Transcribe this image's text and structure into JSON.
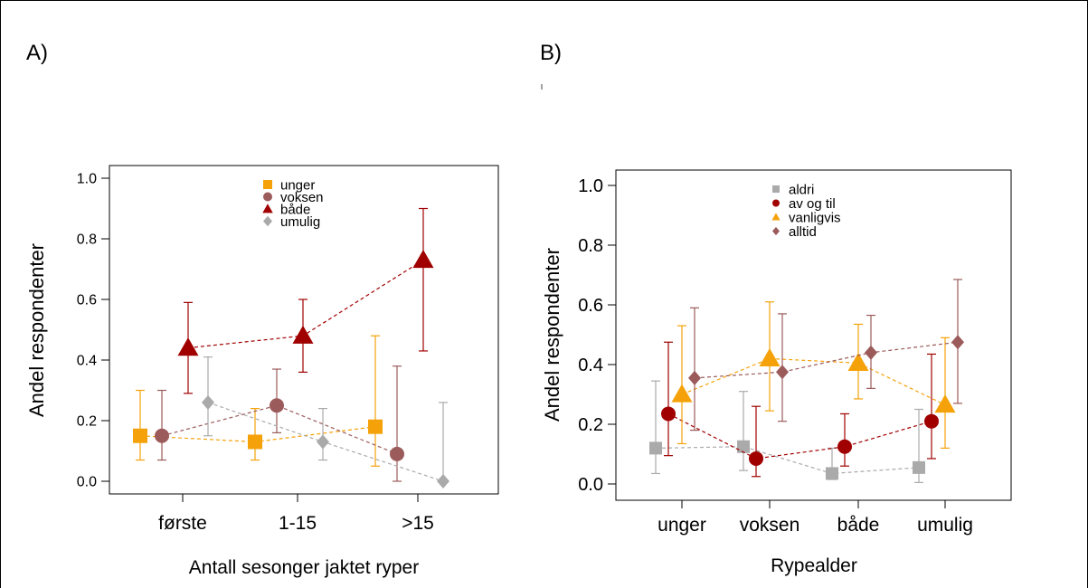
{
  "panels": {
    "a_label": "A)",
    "b_label": "B)"
  },
  "colors": {
    "orange": "#F5A20A",
    "brown": "#9C5B5B",
    "darkred": "#A00000",
    "gray": "#AAAAAA"
  },
  "chart_data": [
    {
      "type": "scatter",
      "panel": "A)",
      "xlabel": "Antall sesonger jaktet ryper",
      "ylabel": "Andel respondenter",
      "categories": [
        "første",
        "1-15",
        ">15"
      ],
      "ylim": [
        0,
        1
      ],
      "yticks": [
        "0.0",
        "0.2",
        "0.4",
        "0.6",
        "0.8",
        "1.0"
      ],
      "legend_position": "top-center",
      "series": [
        {
          "name": "unger",
          "marker": "square",
          "color": "#F5A20A",
          "values": [
            0.15,
            0.13,
            0.18
          ],
          "lower": [
            0.07,
            0.07,
            0.05
          ],
          "upper": [
            0.3,
            0.24,
            0.48
          ]
        },
        {
          "name": "voksen",
          "marker": "circle",
          "color": "#9C5B5B",
          "values": [
            0.15,
            0.25,
            0.09
          ],
          "lower": [
            0.07,
            0.16,
            0.0
          ],
          "upper": [
            0.3,
            0.37,
            0.38
          ]
        },
        {
          "name": "både",
          "marker": "triangle",
          "color": "#A00000",
          "values": [
            0.44,
            0.48,
            0.73
          ],
          "lower": [
            0.29,
            0.36,
            0.43
          ],
          "upper": [
            0.59,
            0.6,
            0.9
          ]
        },
        {
          "name": "umulig",
          "marker": "diamond",
          "color": "#AAAAAA",
          "values": [
            0.26,
            0.13,
            0.0
          ],
          "lower": [
            0.15,
            0.07,
            0.0
          ],
          "upper": [
            0.41,
            0.24,
            0.26
          ]
        }
      ]
    },
    {
      "type": "scatter",
      "panel": "B)",
      "xlabel": "Rypealder",
      "ylabel": "Andel respondenter",
      "categories": [
        "unger",
        "voksen",
        "både",
        "umulig"
      ],
      "ylim": [
        0,
        1
      ],
      "yticks": [
        "0.0",
        "0.2",
        "0.4",
        "0.6",
        "0.8",
        "1.0"
      ],
      "legend_position": "top-center",
      "series": [
        {
          "name": "aldri",
          "marker": "square",
          "color": "#AAAAAA",
          "values": [
            0.12,
            0.125,
            0.035,
            0.055
          ],
          "lower": [
            0.035,
            0.045,
            0.015,
            0.005
          ],
          "upper": [
            0.345,
            0.31,
            0.12,
            0.25
          ]
        },
        {
          "name": "av og til",
          "marker": "circle",
          "color": "#A00000",
          "values": [
            0.235,
            0.085,
            0.125,
            0.21
          ],
          "lower": [
            0.095,
            0.025,
            0.06,
            0.085
          ],
          "upper": [
            0.475,
            0.26,
            0.235,
            0.435
          ]
        },
        {
          "name": "vanligvis",
          "marker": "triangle",
          "color": "#F5A20A",
          "values": [
            0.3,
            0.42,
            0.405,
            0.265
          ],
          "lower": [
            0.135,
            0.245,
            0.285,
            0.12
          ],
          "upper": [
            0.53,
            0.61,
            0.535,
            0.49
          ]
        },
        {
          "name": "alltid",
          "marker": "diamond",
          "color": "#9C5B5B",
          "values": [
            0.355,
            0.375,
            0.44,
            0.475
          ],
          "lower": [
            0.18,
            0.21,
            0.32,
            0.27
          ],
          "upper": [
            0.59,
            0.57,
            0.565,
            0.685
          ]
        }
      ]
    }
  ]
}
